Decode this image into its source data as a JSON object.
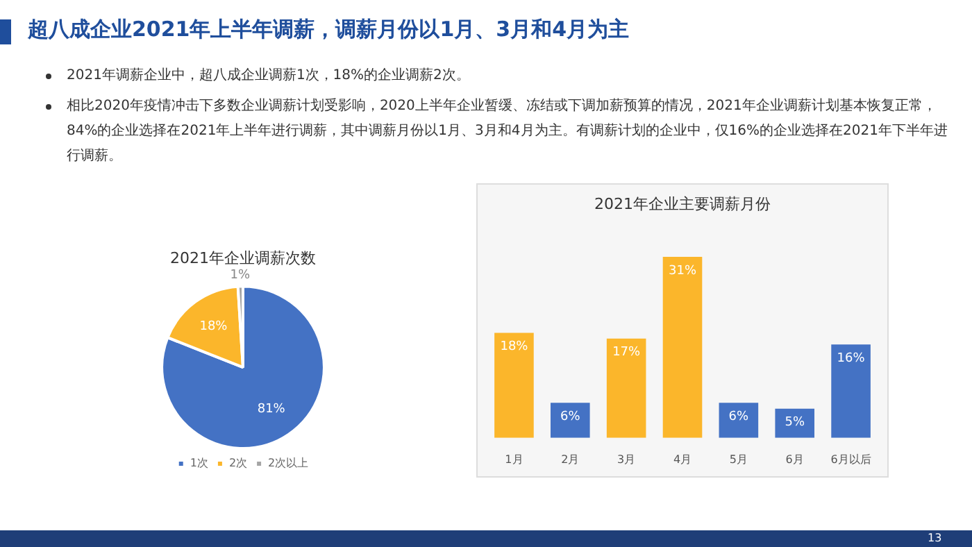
{
  "chart_data": [
    {
      "type": "other",
      "title": "超八成企业2021年上半年调薪，调薪月份以1月、3月和4月为主",
      "annotations": [
        "2021年调薪企业中，超八成企业调薪1次，18%的企业调薪2次。",
        "相比2020年疫情冲击下多数企业调薪计划受影响，2020上半年企业暂缓、冻结或下调加薪预算的情况，2021年企业调薪计划基本恢复正常，84%的企业选择在2021年上半年进行调薪，其中调薪月份以1月、3月和4月为主。有调薪计划的企业中，仅16%的企业选择在2021年下半年进行调薪。",
        "13"
      ]
    },
    {
      "type": "pie",
      "title": "2021年企业调薪次数",
      "categories": [
        "1次",
        "2次",
        "2次以上"
      ],
      "values": [
        81,
        18,
        1
      ],
      "colors": [
        "#4472c4",
        "#fbb62b",
        "#a5a5a5"
      ],
      "value_labels": [
        "81%",
        "18%",
        "1%"
      ],
      "legend": "bottom"
    },
    {
      "type": "bar",
      "title": "2021年企业主要调薪月份",
      "categories": [
        "1月",
        "2月",
        "3月",
        "4月",
        "5月",
        "6月",
        "6月以后"
      ],
      "values": [
        18,
        6,
        17,
        31,
        6,
        5,
        16
      ],
      "colors": [
        "#fbb62b",
        "#4472c4",
        "#fbb62b",
        "#fbb62b",
        "#4472c4",
        "#4472c4",
        "#4472c4"
      ],
      "value_labels": [
        "18%",
        "6%",
        "17%",
        "31%",
        "6%",
        "5%",
        "16%"
      ],
      "tick_labels": "x",
      "grid": false
    }
  ]
}
